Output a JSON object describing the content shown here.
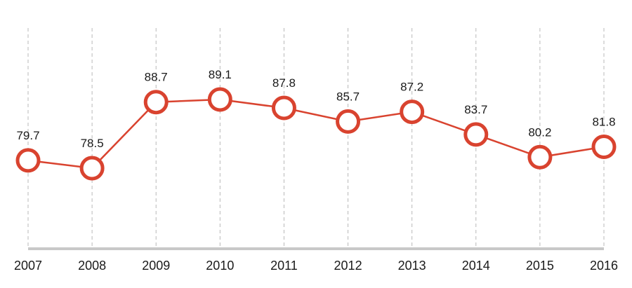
{
  "chart_data": {
    "type": "line",
    "title": "",
    "xlabel": "",
    "ylabel": "",
    "categories": [
      "2007",
      "2008",
      "2009",
      "2010",
      "2011",
      "2012",
      "2013",
      "2014",
      "2015",
      "2016"
    ],
    "series": [
      {
        "values": [
          79.7,
          78.5,
          88.7,
          89.1,
          87.8,
          85.7,
          87.2,
          83.7,
          80.2,
          81.8
        ],
        "data_labels": [
          "79.7",
          "78.5",
          "88.7",
          "89.1",
          "87.8",
          "85.7",
          "87.2",
          "83.7",
          "80.2",
          "81.8"
        ],
        "color": "#d9432f",
        "marker": "hollow-circle"
      }
    ],
    "grid": "vertical dashed",
    "legend": "none"
  }
}
